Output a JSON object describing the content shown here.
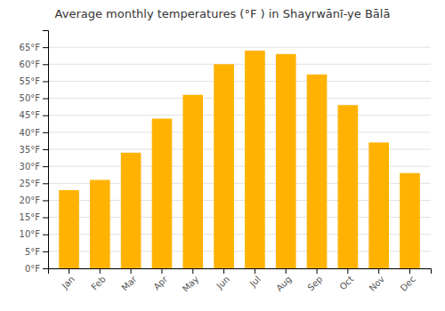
{
  "chart_data": {
    "type": "bar",
    "title": "Average monthly temperatures (°F ) in Shayrwānī-ye Bālā",
    "categories": [
      "Jan",
      "Feb",
      "Mar",
      "Apr",
      "May",
      "Jun",
      "Jul",
      "Aug",
      "Sep",
      "Oct",
      "Nov",
      "Dec"
    ],
    "values": [
      23,
      26,
      34,
      44,
      51,
      60,
      64,
      63,
      57,
      48,
      37,
      28
    ],
    "color": "#FFB300",
    "ylim": [
      0,
      70
    ],
    "yticks": [
      {
        "value": 0,
        "label": "0°F"
      },
      {
        "value": 5,
        "label": "5°F"
      },
      {
        "value": 10,
        "label": "10°F"
      },
      {
        "value": 15,
        "label": "15°F"
      },
      {
        "value": 20,
        "label": "20°F"
      },
      {
        "value": 25,
        "label": "25°F"
      },
      {
        "value": 30,
        "label": "30°F"
      },
      {
        "value": 35,
        "label": "35°F"
      },
      {
        "value": 40,
        "label": "40°F"
      },
      {
        "value": 45,
        "label": "45°F"
      },
      {
        "value": 50,
        "label": "50°F"
      },
      {
        "value": 55,
        "label": "55°F"
      },
      {
        "value": 60,
        "label": "60°F"
      },
      {
        "value": 65,
        "label": "65°F"
      }
    ],
    "grid": true
  }
}
